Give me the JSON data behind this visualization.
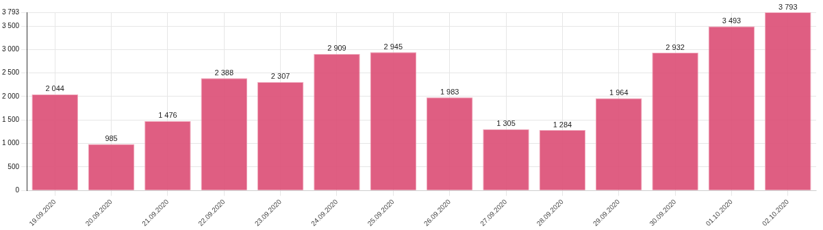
{
  "chart_data": {
    "type": "bar",
    "categories": [
      "19.09.2020",
      "20.09.2020",
      "21.09.2020",
      "22.09.2020",
      "23.09.2020",
      "24.09.2020",
      "25.09.2020",
      "26.09.2020",
      "27.09.2020",
      "28.09.2020",
      "29.09.2020",
      "30.09.2020",
      "01.10.2020",
      "02.10.2020"
    ],
    "values": [
      2044,
      985,
      1476,
      2388,
      2307,
      2909,
      2945,
      1983,
      1305,
      1284,
      1964,
      2932,
      3493,
      3793
    ],
    "value_labels": [
      "2 044",
      "985",
      "1 476",
      "2 388",
      "2 307",
      "2 909",
      "2 945",
      "1 983",
      "1 305",
      "1 284",
      "1 964",
      "2 932",
      "3 493",
      "3 793"
    ],
    "color": "#dc4c74",
    "ylim": [
      0,
      3793
    ],
    "yticks": [
      {
        "value": 0,
        "label": "0"
      },
      {
        "value": 500,
        "label": "500"
      },
      {
        "value": 1000,
        "label": "1 000"
      },
      {
        "value": 1500,
        "label": "1 500"
      },
      {
        "value": 2000,
        "label": "2 000"
      },
      {
        "value": 2500,
        "label": "2 500"
      },
      {
        "value": 3000,
        "label": "3 000"
      },
      {
        "value": 3500,
        "label": "3 500"
      },
      {
        "value": 3793,
        "label": "3 793"
      }
    ],
    "grid": true
  }
}
